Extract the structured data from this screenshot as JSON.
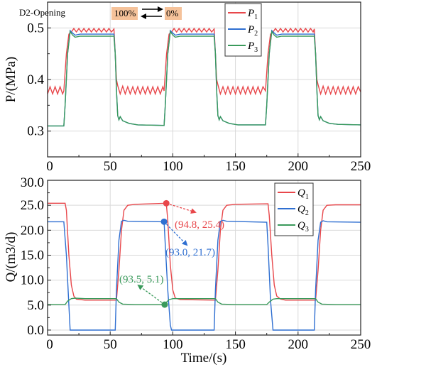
{
  "chart_data": [
    {
      "type": "line",
      "xlabel": "",
      "ylabel": "P/(MPa)",
      "xlim": [
        0,
        250
      ],
      "ylim": [
        0.25,
        0.55
      ],
      "xticks": [
        0,
        50,
        100,
        150,
        200,
        250
      ],
      "xtick_labels": [
        "0",
        "50",
        "100",
        "150",
        "200",
        "250"
      ],
      "yticks": [
        0.3,
        0.4,
        0.5
      ],
      "ytick_labels": [
        "0.3",
        "0.4",
        "0.5"
      ],
      "grid": true,
      "legend_position": "top-center",
      "annotation": {
        "label": "D2-Opening",
        "from": "100%",
        "to": "0%",
        "box_color": "#f5c29a"
      },
      "series": [
        {
          "name": "P1",
          "sub": "1",
          "color": "#e8474b",
          "x": [
            0,
            2,
            4,
            6,
            8,
            10,
            12,
            13,
            15,
            17,
            19,
            21,
            23,
            25,
            27,
            29,
            31,
            33,
            35,
            37,
            39,
            41,
            43,
            45,
            47,
            49,
            51,
            53,
            54,
            55,
            56,
            58,
            60,
            62,
            64,
            66,
            68,
            70,
            72,
            74,
            76,
            78,
            80,
            82,
            84,
            86,
            88,
            90,
            92,
            93,
            95,
            97,
            99,
            101,
            103,
            105,
            107,
            109,
            111,
            113,
            115,
            117,
            119,
            121,
            123,
            125,
            127,
            129,
            131,
            133,
            134,
            135,
            136,
            138,
            140,
            142,
            144,
            146,
            148,
            150,
            152,
            154,
            156,
            158,
            160,
            162,
            164,
            166,
            168,
            170,
            172,
            174,
            176,
            178,
            180,
            182,
            184,
            186,
            188,
            190,
            192,
            194,
            196,
            198,
            200,
            202,
            204,
            206,
            208,
            210,
            212,
            213,
            214,
            215,
            216,
            218,
            220,
            222,
            224,
            226,
            228,
            230,
            232,
            234,
            236,
            238,
            240,
            242,
            244,
            246,
            248,
            250
          ],
          "y": [
            0.372,
            0.386,
            0.372,
            0.386,
            0.372,
            0.386,
            0.372,
            0.378,
            0.45,
            0.488,
            0.492,
            0.499,
            0.492,
            0.499,
            0.492,
            0.499,
            0.492,
            0.499,
            0.492,
            0.499,
            0.492,
            0.499,
            0.492,
            0.499,
            0.492,
            0.499,
            0.492,
            0.498,
            0.45,
            0.4,
            0.388,
            0.372,
            0.387,
            0.372,
            0.386,
            0.372,
            0.386,
            0.372,
            0.386,
            0.372,
            0.386,
            0.372,
            0.386,
            0.372,
            0.386,
            0.372,
            0.386,
            0.372,
            0.386,
            0.378,
            0.45,
            0.488,
            0.492,
            0.499,
            0.492,
            0.499,
            0.492,
            0.499,
            0.492,
            0.499,
            0.492,
            0.499,
            0.492,
            0.499,
            0.492,
            0.499,
            0.492,
            0.499,
            0.492,
            0.498,
            0.45,
            0.4,
            0.39,
            0.372,
            0.386,
            0.372,
            0.386,
            0.372,
            0.386,
            0.372,
            0.386,
            0.372,
            0.386,
            0.372,
            0.386,
            0.372,
            0.386,
            0.372,
            0.386,
            0.372,
            0.386,
            0.378,
            0.45,
            0.488,
            0.492,
            0.499,
            0.492,
            0.499,
            0.492,
            0.499,
            0.492,
            0.499,
            0.492,
            0.499,
            0.492,
            0.499,
            0.492,
            0.499,
            0.492,
            0.499,
            0.492,
            0.498,
            0.45,
            0.4,
            0.39,
            0.372,
            0.387,
            0.372,
            0.386,
            0.372,
            0.386,
            0.372,
            0.386,
            0.372,
            0.386,
            0.372,
            0.386,
            0.372,
            0.386,
            0.372,
            0.386,
            0.376
          ]
        },
        {
          "name": "P2",
          "sub": "2",
          "color": "#2f6fd1",
          "x": [
            0,
            13,
            14,
            16,
            18,
            20,
            22,
            26,
            53,
            54,
            55,
            56,
            57,
            58,
            60,
            65,
            72,
            93,
            94,
            96,
            98,
            100,
            102,
            106,
            133,
            134,
            135,
            136,
            137,
            138,
            140,
            145,
            152,
            174,
            175,
            177,
            179,
            181,
            183,
            187,
            213,
            214,
            215,
            216,
            217,
            218,
            220,
            225,
            232,
            250
          ],
          "y": [
            0.31,
            0.31,
            0.35,
            0.45,
            0.495,
            0.49,
            0.486,
            0.488,
            0.488,
            0.45,
            0.38,
            0.33,
            0.322,
            0.328,
            0.32,
            0.315,
            0.312,
            0.311,
            0.35,
            0.45,
            0.495,
            0.49,
            0.486,
            0.488,
            0.488,
            0.45,
            0.38,
            0.33,
            0.322,
            0.328,
            0.32,
            0.315,
            0.312,
            0.312,
            0.35,
            0.45,
            0.495,
            0.49,
            0.486,
            0.488,
            0.488,
            0.45,
            0.38,
            0.33,
            0.322,
            0.328,
            0.32,
            0.315,
            0.313,
            0.312
          ]
        },
        {
          "name": "P3",
          "sub": "3",
          "color": "#3a9a5b",
          "x": [
            0,
            13,
            14,
            16,
            18,
            20,
            22,
            26,
            53,
            54,
            55,
            56,
            57,
            58,
            60,
            65,
            72,
            93,
            94,
            96,
            98,
            100,
            102,
            106,
            133,
            134,
            135,
            136,
            137,
            138,
            140,
            145,
            152,
            174,
            175,
            177,
            179,
            181,
            183,
            187,
            213,
            214,
            215,
            216,
            217,
            218,
            220,
            225,
            232,
            250
          ],
          "y": [
            0.31,
            0.31,
            0.35,
            0.45,
            0.493,
            0.486,
            0.482,
            0.484,
            0.484,
            0.45,
            0.38,
            0.33,
            0.322,
            0.328,
            0.32,
            0.315,
            0.312,
            0.311,
            0.35,
            0.45,
            0.493,
            0.486,
            0.482,
            0.484,
            0.484,
            0.45,
            0.38,
            0.33,
            0.322,
            0.328,
            0.32,
            0.315,
            0.312,
            0.312,
            0.35,
            0.45,
            0.493,
            0.486,
            0.482,
            0.484,
            0.484,
            0.45,
            0.38,
            0.33,
            0.322,
            0.328,
            0.32,
            0.315,
            0.313,
            0.312
          ]
        }
      ]
    },
    {
      "type": "line",
      "xlabel": "Time/(s)",
      "ylabel": "Q/(m3/d)",
      "xlim": [
        0,
        250
      ],
      "ylim": [
        -1,
        30
      ],
      "xticks": [
        0,
        50,
        100,
        150,
        200,
        250
      ],
      "xtick_labels": [
        "0",
        "50",
        "100",
        "150",
        "200",
        "250"
      ],
      "yticks": [
        0,
        5,
        10,
        15,
        20,
        25,
        30
      ],
      "ytick_labels": [
        "0.0",
        "5.0",
        "10.0",
        "15.0",
        "20.0",
        "25.0",
        "30.0"
      ],
      "grid": true,
      "legend_position": "top-right",
      "series": [
        {
          "name": "Q1",
          "sub": "1",
          "color": "#e8474b",
          "x": [
            0,
            14,
            15,
            17,
            19,
            21,
            23,
            30,
            55,
            57,
            59,
            61,
            64,
            70,
            94.8,
            96,
            98,
            100,
            102,
            106,
            134,
            136,
            138,
            140,
            143,
            150,
            176,
            177,
            179,
            181,
            183,
            186,
            190,
            214,
            216,
            218,
            220,
            223,
            230,
            250
          ],
          "y": [
            25.4,
            25.4,
            24,
            15,
            9,
            6.8,
            6.2,
            6.0,
            6.0,
            12,
            20,
            24,
            25,
            25.2,
            25.4,
            22,
            13,
            8,
            6.4,
            6.1,
            6.0,
            12,
            20,
            24,
            25,
            25.2,
            25.3,
            23,
            15,
            9,
            6.8,
            6.2,
            6.0,
            6.0,
            12,
            20,
            24,
            25,
            25.1,
            25.1
          ]
        },
        {
          "name": "Q2",
          "sub": "2",
          "color": "#2f6fd1",
          "x": [
            0,
            13,
            15,
            17,
            18,
            54,
            55,
            57,
            59,
            61,
            64,
            93,
            94,
            96,
            98,
            99,
            133,
            134,
            136,
            138,
            140,
            143,
            175,
            176,
            178,
            180,
            213,
            214,
            216,
            218,
            220,
            223,
            250
          ],
          "y": [
            21.7,
            21.7,
            15,
            5,
            0,
            0,
            8,
            18,
            21.8,
            22.0,
            21.8,
            21.7,
            17,
            8,
            1,
            0,
            0,
            8,
            18,
            21.8,
            22.0,
            21.8,
            21.6,
            17,
            6,
            0,
            0,
            8,
            18,
            21.6,
            21.9,
            21.7,
            21.6
          ]
        },
        {
          "name": "Q3",
          "sub": "3",
          "color": "#3a9a5b",
          "x": [
            0,
            14,
            16,
            19,
            22,
            30,
            55,
            57,
            60,
            70,
            93.5,
            95,
            97,
            100,
            134,
            136,
            139,
            150,
            175,
            177,
            180,
            183,
            214,
            216,
            219,
            230,
            250
          ],
          "y": [
            5.1,
            5.1,
            5.8,
            6.3,
            6.4,
            6.3,
            6.3,
            5.6,
            5.2,
            5.1,
            5.1,
            5.6,
            6.1,
            6.3,
            6.3,
            5.6,
            5.2,
            5.1,
            5.1,
            5.6,
            6.2,
            6.3,
            6.3,
            5.6,
            5.2,
            5.1,
            5.1
          ]
        }
      ],
      "annotations": [
        {
          "label": "(94.8, 25.4)",
          "x": 94.8,
          "y": 25.4,
          "color": "#e8474b"
        },
        {
          "label": "(93.0, 21.7)",
          "x": 93.0,
          "y": 21.7,
          "color": "#2f6fd1"
        },
        {
          "label": "(93.5, 5.1)",
          "x": 93.5,
          "y": 5.1,
          "color": "#3a9a5b"
        }
      ]
    }
  ]
}
